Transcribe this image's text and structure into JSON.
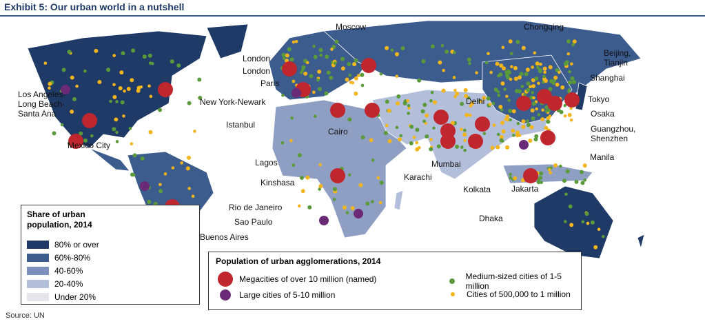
{
  "title": "Exhibit 5: Our urban world in a nutshell",
  "cities": [
    {
      "label": "London"
    },
    {
      "label": "London"
    },
    {
      "label": "Paris"
    },
    {
      "label": "New York-Newark"
    },
    {
      "label": "Istanbul"
    },
    {
      "label": "Moscow"
    },
    {
      "label": "Cairo"
    },
    {
      "label": "Lagos"
    },
    {
      "label": "Kinshasa"
    },
    {
      "label": "Rio de Janeiro"
    },
    {
      "label": "Sao Paulo"
    },
    {
      "label": "Buenos Aires"
    },
    {
      "label": "Mexico City"
    },
    {
      "label": "Los Angeles-Long Beach-Santa Ana"
    },
    {
      "label": "Karachi"
    },
    {
      "label": "Mumbai"
    },
    {
      "label": "Delhi"
    },
    {
      "label": "Kolkata"
    },
    {
      "label": "Dhaka"
    },
    {
      "label": "Jakarta"
    },
    {
      "label": "Manila"
    },
    {
      "label": "Chongqing"
    },
    {
      "label": "Beijing, Tianjin"
    },
    {
      "label": "Shanghai"
    },
    {
      "label": "Tokyo"
    },
    {
      "label": "Osaka"
    },
    {
      "label": "Guangzhou, Shenzhen"
    }
  ],
  "share_legend": {
    "title": "Share of urban population, 2014",
    "items": [
      {
        "label": "80% or over",
        "color": "#1f3a66"
      },
      {
        "label": "60%-80%",
        "color": "#3d5c8e"
      },
      {
        "label": "40-60%",
        "color": "#7d8fbb"
      },
      {
        "label": "20-40%",
        "color": "#b3bedb"
      },
      {
        "label": "Under 20%",
        "color": "#e3e5ea"
      }
    ]
  },
  "population_legend": {
    "title": "Population of urban agglomerations, 2014",
    "items": [
      {
        "label": "Megacities of over 10 million (named)",
        "color": "#c0262d"
      },
      {
        "label": "Large cities of 5-10 million",
        "color": "#6a2a78"
      },
      {
        "label": "Medium-sized cities of 1-5 million",
        "color": "#5a9a3a"
      },
      {
        "label": "Cities of 500,000 to 1 million",
        "color": "#f2b51c"
      }
    ]
  },
  "source": "Source: UN"
}
